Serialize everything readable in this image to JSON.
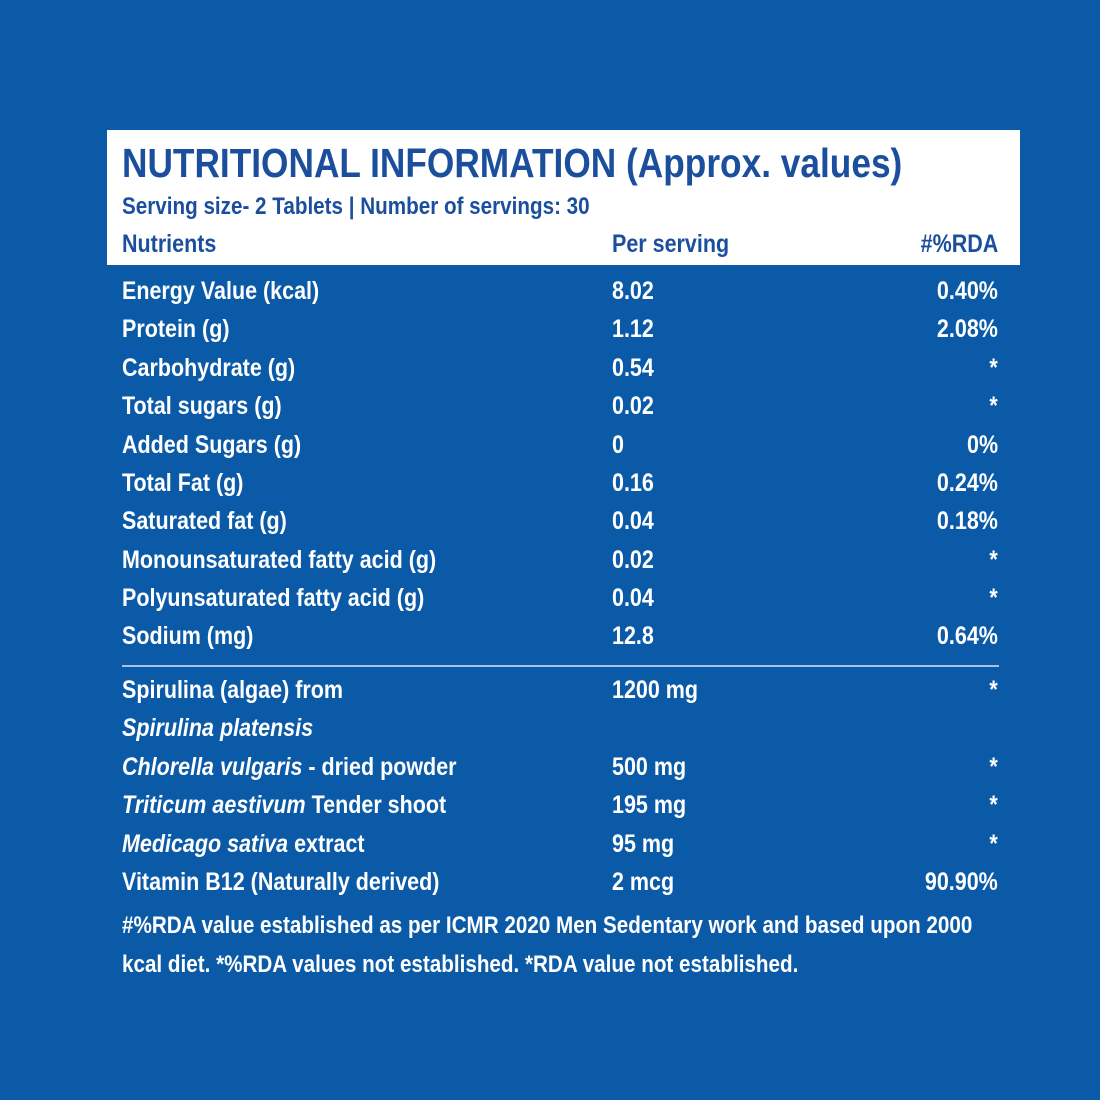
{
  "header": {
    "title": "NUTRITIONAL INFORMATION (Approx. values)",
    "serving": "Serving size- 2 Tablets | Number of servings: 30"
  },
  "table": {
    "columns": [
      "Nutrients",
      "Per serving",
      "#%RDA"
    ],
    "rows": [
      {
        "name": [
          {
            "text": "Energy Value (kcal)"
          }
        ],
        "per_serving": "8.02",
        "rda": "0.40%"
      },
      {
        "name": [
          {
            "text": "Protein (g)"
          }
        ],
        "per_serving": "1.12",
        "rda": "2.08%"
      },
      {
        "name": [
          {
            "text": "Carbohydrate (g)"
          }
        ],
        "per_serving": "0.54",
        "rda": "*"
      },
      {
        "name": [
          {
            "text": "Total sugars (g)"
          }
        ],
        "per_serving": "0.02",
        "rda": "*"
      },
      {
        "name": [
          {
            "text": "Added Sugars (g)"
          }
        ],
        "per_serving": "0",
        "rda": "0%"
      },
      {
        "name": [
          {
            "text": "Total Fat (g)"
          }
        ],
        "per_serving": "0.16",
        "rda": "0.24%"
      },
      {
        "name": [
          {
            "text": "Saturated fat (g)"
          }
        ],
        "per_serving": "0.04",
        "rda": "0.18%"
      },
      {
        "name": [
          {
            "text": "Monounsaturated fatty acid (g)"
          }
        ],
        "per_serving": "0.02",
        "rda": "*"
      },
      {
        "name": [
          {
            "text": "Polyunsaturated fatty acid (g)"
          }
        ],
        "per_serving": "0.04",
        "rda": "*"
      },
      {
        "name": [
          {
            "text": "Sodium (mg)"
          }
        ],
        "per_serving": "12.8",
        "rda": "0.64%",
        "divider_after": true
      },
      {
        "name": [
          {
            "text": "Spirulina (algae) from"
          }
        ],
        "per_serving": "1200 mg",
        "rda": "*"
      },
      {
        "name": [
          {
            "text": "Spirulina platensis",
            "italic": true
          }
        ]
      },
      {
        "name": [
          {
            "text": "Chlorella vulgaris",
            "italic": true
          },
          {
            "text": " - dried powder"
          }
        ],
        "per_serving": "500 mg",
        "rda": "*"
      },
      {
        "name": [
          {
            "text": "Triticum aestivum",
            "italic": true
          },
          {
            "text": " Tender shoot"
          }
        ],
        "per_serving": "195 mg",
        "rda": "*"
      },
      {
        "name": [
          {
            "text": "Medicago sativa",
            "italic": true
          },
          {
            "text": " extract"
          }
        ],
        "per_serving": "95 mg",
        "rda": "*"
      },
      {
        "name": [
          {
            "text": "Vitamin B12 (Naturally derived)"
          }
        ],
        "per_serving": "2 mcg",
        "rda": "90.90%"
      }
    ]
  },
  "footnote": "#%RDA value established as per ICMR 2020 Men Sedentary work and based upon 2000 kcal diet. *%RDA values not established. *RDA value not established."
}
